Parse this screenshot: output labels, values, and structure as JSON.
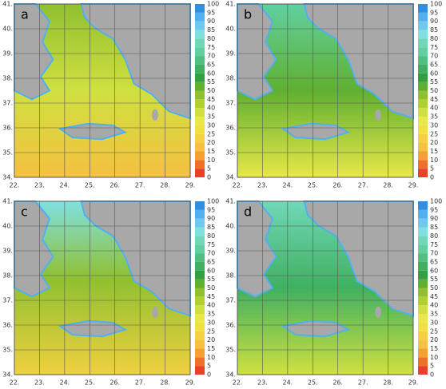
{
  "panels": [
    {
      "label": "a"
    },
    {
      "label": "b"
    },
    {
      "label": "c"
    },
    {
      "label": "d"
    }
  ],
  "xlim": [
    22,
    29
  ],
  "ylim": [
    34,
    41
  ],
  "lon_ticks": [
    {
      "value": 22,
      "label": "22."
    },
    {
      "value": 23,
      "label": "23."
    },
    {
      "value": 24,
      "label": "24."
    },
    {
      "value": 25,
      "label": "25."
    },
    {
      "value": 26,
      "label": "26."
    },
    {
      "value": 27,
      "label": "27."
    },
    {
      "value": 28,
      "label": "28."
    },
    {
      "value": 29,
      "label": "29."
    }
  ],
  "lat_ticks": [
    {
      "value": 34,
      "label": "34."
    },
    {
      "value": 35,
      "label": "35."
    },
    {
      "value": 36,
      "label": "36."
    },
    {
      "value": 37,
      "label": "37."
    },
    {
      "value": 38,
      "label": "38."
    },
    {
      "value": 39,
      "label": "39."
    },
    {
      "value": 40,
      "label": "40."
    },
    {
      "value": 41,
      "label": "41."
    }
  ],
  "colorbar": {
    "ticks": [
      0,
      5,
      10,
      15,
      20,
      25,
      30,
      35,
      40,
      45,
      50,
      55,
      60,
      65,
      70,
      75,
      80,
      85,
      90,
      95,
      100
    ],
    "colors": [
      "#e8402a",
      "#f0702a",
      "#f5a030",
      "#f7c040",
      "#f5d040",
      "#f0e040",
      "#e8e848",
      "#d0e040",
      "#b0d030",
      "#90c030",
      "#60b030",
      "#30a040",
      "#40b060",
      "#50c080",
      "#60d0a0",
      "#70d8b8",
      "#80e0e0",
      "#70c8f0",
      "#50b0f0",
      "#3090e0"
    ]
  }
}
